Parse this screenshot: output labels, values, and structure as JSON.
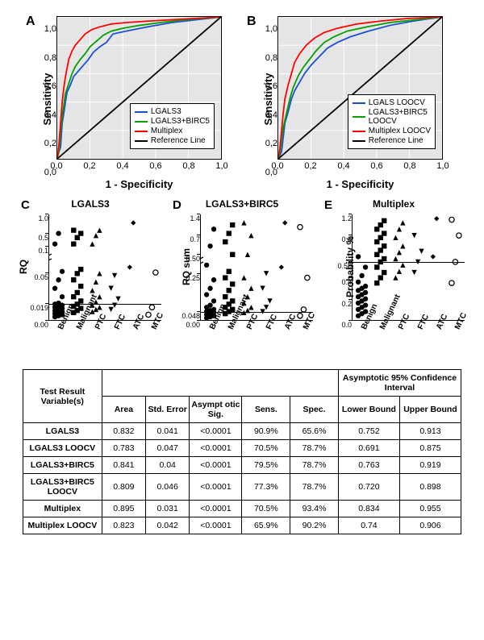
{
  "roc": {
    "ylabel": "Sensitivity",
    "xlabel": "1 - Specificity",
    "ticks": [
      "0,0",
      "0,2",
      "0,4",
      "0,6",
      "0,8",
      "1,0"
    ],
    "panelA": {
      "letter": "A",
      "background": "#e5e5e5",
      "curves": [
        {
          "name": "LGALS3",
          "color": "#1a4fd6",
          "points": [
            [
              0,
              0
            ],
            [
              0,
              0.02
            ],
            [
              0.02,
              0.08
            ],
            [
              0.03,
              0.25
            ],
            [
              0.04,
              0.32
            ],
            [
              0.05,
              0.4
            ],
            [
              0.06,
              0.47
            ],
            [
              0.08,
              0.52
            ],
            [
              0.1,
              0.58
            ],
            [
              0.13,
              0.62
            ],
            [
              0.16,
              0.66
            ],
            [
              0.19,
              0.7
            ],
            [
              0.22,
              0.75
            ],
            [
              0.26,
              0.79
            ],
            [
              0.3,
              0.82
            ],
            [
              0.34,
              0.88
            ],
            [
              0.42,
              0.9
            ],
            [
              0.55,
              0.93
            ],
            [
              0.7,
              0.96
            ],
            [
              0.85,
              0.98
            ],
            [
              1,
              1
            ]
          ]
        },
        {
          "name": "LGALS3+BIRC5",
          "color": "#00a000",
          "points": [
            [
              0,
              0
            ],
            [
              0.01,
              0.05
            ],
            [
              0.02,
              0.18
            ],
            [
              0.03,
              0.3
            ],
            [
              0.04,
              0.38
            ],
            [
              0.05,
              0.46
            ],
            [
              0.07,
              0.53
            ],
            [
              0.09,
              0.6
            ],
            [
              0.11,
              0.65
            ],
            [
              0.14,
              0.7
            ],
            [
              0.17,
              0.74
            ],
            [
              0.2,
              0.79
            ],
            [
              0.24,
              0.83
            ],
            [
              0.28,
              0.87
            ],
            [
              0.33,
              0.9
            ],
            [
              0.4,
              0.92
            ],
            [
              0.5,
              0.94
            ],
            [
              0.63,
              0.96
            ],
            [
              0.78,
              0.98
            ],
            [
              1,
              1
            ]
          ]
        },
        {
          "name": "Multiplex",
          "color": "#ff0000",
          "points": [
            [
              0,
              0
            ],
            [
              0.01,
              0.1
            ],
            [
              0.02,
              0.25
            ],
            [
              0.03,
              0.4
            ],
            [
              0.04,
              0.5
            ],
            [
              0.05,
              0.58
            ],
            [
              0.06,
              0.64
            ],
            [
              0.07,
              0.7
            ],
            [
              0.09,
              0.76
            ],
            [
              0.11,
              0.8
            ],
            [
              0.14,
              0.84
            ],
            [
              0.17,
              0.88
            ],
            [
              0.21,
              0.91
            ],
            [
              0.26,
              0.93
            ],
            [
              0.33,
              0.95
            ],
            [
              0.42,
              0.96
            ],
            [
              0.55,
              0.97
            ],
            [
              0.7,
              0.98
            ],
            [
              0.85,
              0.99
            ],
            [
              1,
              1
            ]
          ]
        },
        {
          "name": "Reference Line",
          "color": "#000000",
          "points": [
            [
              0,
              0
            ],
            [
              1,
              1
            ]
          ]
        }
      ]
    },
    "panelB": {
      "letter": "B",
      "background": "#e5e5e5",
      "curves": [
        {
          "name": "LGALS LOOCV",
          "color": "#1a4fd6",
          "points": [
            [
              0,
              0
            ],
            [
              0.02,
              0.05
            ],
            [
              0.03,
              0.15
            ],
            [
              0.04,
              0.25
            ],
            [
              0.06,
              0.33
            ],
            [
              0.08,
              0.42
            ],
            [
              0.1,
              0.48
            ],
            [
              0.13,
              0.54
            ],
            [
              0.16,
              0.6
            ],
            [
              0.2,
              0.66
            ],
            [
              0.25,
              0.72
            ],
            [
              0.3,
              0.78
            ],
            [
              0.36,
              0.82
            ],
            [
              0.44,
              0.86
            ],
            [
              0.55,
              0.9
            ],
            [
              0.68,
              0.94
            ],
            [
              0.82,
              0.97
            ],
            [
              1,
              1
            ]
          ]
        },
        {
          "name": "LGALS3+BIRC5\nLOOCV",
          "color": "#00a000",
          "points": [
            [
              0,
              0
            ],
            [
              0.01,
              0.04
            ],
            [
              0.02,
              0.14
            ],
            [
              0.03,
              0.22
            ],
            [
              0.05,
              0.32
            ],
            [
              0.07,
              0.42
            ],
            [
              0.09,
              0.5
            ],
            [
              0.12,
              0.58
            ],
            [
              0.15,
              0.64
            ],
            [
              0.19,
              0.7
            ],
            [
              0.23,
              0.76
            ],
            [
              0.28,
              0.82
            ],
            [
              0.34,
              0.86
            ],
            [
              0.42,
              0.9
            ],
            [
              0.54,
              0.93
            ],
            [
              0.68,
              0.96
            ],
            [
              0.84,
              0.98
            ],
            [
              1,
              1
            ]
          ]
        },
        {
          "name": "Multiplex LOOCV",
          "color": "#ff0000",
          "points": [
            [
              0,
              0
            ],
            [
              0.01,
              0.08
            ],
            [
              0.02,
              0.2
            ],
            [
              0.03,
              0.32
            ],
            [
              0.04,
              0.42
            ],
            [
              0.06,
              0.52
            ],
            [
              0.08,
              0.6
            ],
            [
              0.1,
              0.68
            ],
            [
              0.13,
              0.74
            ],
            [
              0.17,
              0.8
            ],
            [
              0.22,
              0.85
            ],
            [
              0.28,
              0.89
            ],
            [
              0.36,
              0.92
            ],
            [
              0.48,
              0.95
            ],
            [
              0.62,
              0.97
            ],
            [
              0.8,
              0.99
            ],
            [
              1,
              1
            ]
          ]
        },
        {
          "name": "Reference Line",
          "color": "#000000",
          "points": [
            [
              0,
              0
            ],
            [
              1,
              1
            ]
          ]
        }
      ]
    }
  },
  "scatter": {
    "categories": [
      "Benign",
      "Malignant",
      "PTC",
      "FTC",
      "ATC",
      "MTC"
    ],
    "panels": [
      {
        "letter": "C",
        "title": "LGALS3",
        "ylabel": "RQ",
        "yticks": [
          {
            "v": 0,
            "l": "0.00"
          },
          {
            "v": 0.16,
            "l": "0.019"
          },
          {
            "v": 0.45,
            "l": "0.05"
          },
          {
            "v": 0.7,
            "l": "0.1"
          },
          {
            "v": 0.82,
            "l": "0.5"
          },
          {
            "v": 1.0,
            "l": "1.0"
          }
        ],
        "threshold_y": 0.16,
        "axis_break": 0.58,
        "markers": {
          "Benign": "circle",
          "Malignant": "square",
          "PTC": "triangle",
          "FTC": "down",
          "ATC": "diamond",
          "MTC": "open"
        },
        "points": {
          "Benign": [
            0.03,
            0.04,
            0.05,
            0.06,
            0.07,
            0.08,
            0.09,
            0.1,
            0.11,
            0.12,
            0.13,
            0.14,
            0.15,
            0.16,
            0.22,
            0.3,
            0.38,
            0.46,
            0.72,
            0.82
          ],
          "Malignant": [
            0.07,
            0.09,
            0.11,
            0.13,
            0.15,
            0.18,
            0.22,
            0.26,
            0.32,
            0.38,
            0.44,
            0.48,
            0.72,
            0.78,
            0.82,
            0.85
          ],
          "PTC": [
            0.08,
            0.1,
            0.12,
            0.14,
            0.17,
            0.22,
            0.28,
            0.36,
            0.44,
            0.72,
            0.8,
            0.85
          ],
          "FTC": [
            0.1,
            0.14,
            0.2,
            0.3,
            0.42
          ],
          "ATC": [
            0.5,
            0.92
          ],
          "MTC": [
            0.05,
            0.12,
            0.45
          ]
        }
      },
      {
        "letter": "D",
        "title": "LGALS3+BIRC5",
        "ylabel": "RQ sum",
        "yticks": [
          {
            "v": 0,
            "l": "0.00"
          },
          {
            "v": 0.08,
            "l": "0.048"
          },
          {
            "v": 0.44,
            "l": "0.25"
          },
          {
            "v": 0.62,
            "l": "0.50"
          },
          {
            "v": 0.8,
            "l": "0.7"
          },
          {
            "v": 1.0,
            "l": "1.4"
          }
        ],
        "threshold_y": 0.08,
        "axis_break": 0.55,
        "markers": {
          "Benign": "circle",
          "Malignant": "square",
          "PTC": "triangle",
          "FTC": "down",
          "ATC": "diamond",
          "MTC": "open"
        },
        "points": {
          "Benign": [
            0.02,
            0.03,
            0.04,
            0.05,
            0.06,
            0.07,
            0.08,
            0.09,
            0.1,
            0.12,
            0.14,
            0.18,
            0.24,
            0.3,
            0.38,
            0.52,
            0.7,
            0.86
          ],
          "Malignant": [
            0.06,
            0.08,
            0.1,
            0.12,
            0.15,
            0.18,
            0.22,
            0.28,
            0.34,
            0.4,
            0.46,
            0.62,
            0.74,
            0.82,
            0.9
          ],
          "PTC": [
            0.07,
            0.09,
            0.12,
            0.16,
            0.22,
            0.3,
            0.4,
            0.62,
            0.8,
            0.92
          ],
          "FTC": [
            0.08,
            0.12,
            0.18,
            0.3,
            0.44
          ],
          "ATC": [
            0.5,
            0.92
          ],
          "MTC": [
            0.04,
            0.1,
            0.4,
            0.88
          ]
        }
      },
      {
        "letter": "E",
        "title": "Multiplex",
        "ylabel": "Probability %",
        "yticks": [
          {
            "v": 0,
            "l": "0.0"
          },
          {
            "v": 0.2,
            "l": "0.2"
          },
          {
            "v": 0.4,
            "l": "0.4"
          },
          {
            "v": 0.55,
            "l": "0.55"
          },
          {
            "v": 0.8,
            "l": "0.8"
          },
          {
            "v": 1.0,
            "l": "1.2"
          }
        ],
        "threshold_y": 0.55,
        "axis_break": null,
        "markers": {
          "Benign": "circle",
          "Malignant": "square",
          "PTC": "triangle",
          "FTC": "down",
          "ATC": "diamond",
          "MTC": "open"
        },
        "points": {
          "Benign": [
            0.04,
            0.06,
            0.08,
            0.1,
            0.12,
            0.14,
            0.16,
            0.18,
            0.2,
            0.22,
            0.24,
            0.26,
            0.28,
            0.3,
            0.32,
            0.36,
            0.42,
            0.5,
            0.6
          ],
          "Malignant": [
            0.35,
            0.4,
            0.45,
            0.5,
            0.55,
            0.58,
            0.62,
            0.66,
            0.7,
            0.74,
            0.78,
            0.82,
            0.86,
            0.9,
            0.94
          ],
          "PTC": [
            0.4,
            0.46,
            0.52,
            0.58,
            0.64,
            0.7,
            0.78,
            0.86,
            0.92
          ],
          "FTC": [
            0.45,
            0.55,
            0.65,
            0.8
          ],
          "ATC": [
            0.6,
            0.96
          ],
          "MTC": [
            0.35,
            0.55,
            0.8,
            0.95
          ]
        }
      }
    ]
  },
  "table": {
    "header_group_left": "Test Result Variable(s)",
    "header_group_right": "Asymptotic 95% Confidence Interval",
    "columns": [
      "Area",
      "Std. Error",
      "Asympt otic Sig.",
      "Sens.",
      "Spec.",
      "Lower Bound",
      "Upper Bound"
    ],
    "rows": [
      {
        "name": "LGALS3",
        "vals": [
          "0.832",
          "0.041",
          "<0.0001",
          "90.9%",
          "65.6%",
          "0.752",
          "0.913"
        ]
      },
      {
        "name": "LGALS3 LOOCV",
        "vals": [
          "0.783",
          "0.047",
          "<0.0001",
          "70.5%",
          "78.7%",
          "0.691",
          "0.875"
        ]
      },
      {
        "name": "LGALS3+BIRC5",
        "vals": [
          "0.841",
          "0.04",
          "<0.0001",
          "79.5%",
          "78.7%",
          "0.763",
          "0.919"
        ]
      },
      {
        "name": "LGALS3+BIRC5 LOOCV",
        "vals": [
          "0.809",
          "0.046",
          "<0.0001",
          "77.3%",
          "78.7%",
          "0.720",
          "0.898"
        ]
      },
      {
        "name": "Multiplex",
        "vals": [
          "0.895",
          "0.031",
          "<0.0001",
          "70.5%",
          "93.4%",
          "0.834",
          "0.955"
        ]
      },
      {
        "name": "Multiplex LOOCV",
        "vals": [
          "0.823",
          "0.042",
          "<0.0001",
          "65.9%",
          "90.2%",
          "0.74",
          "0.906"
        ]
      }
    ]
  }
}
